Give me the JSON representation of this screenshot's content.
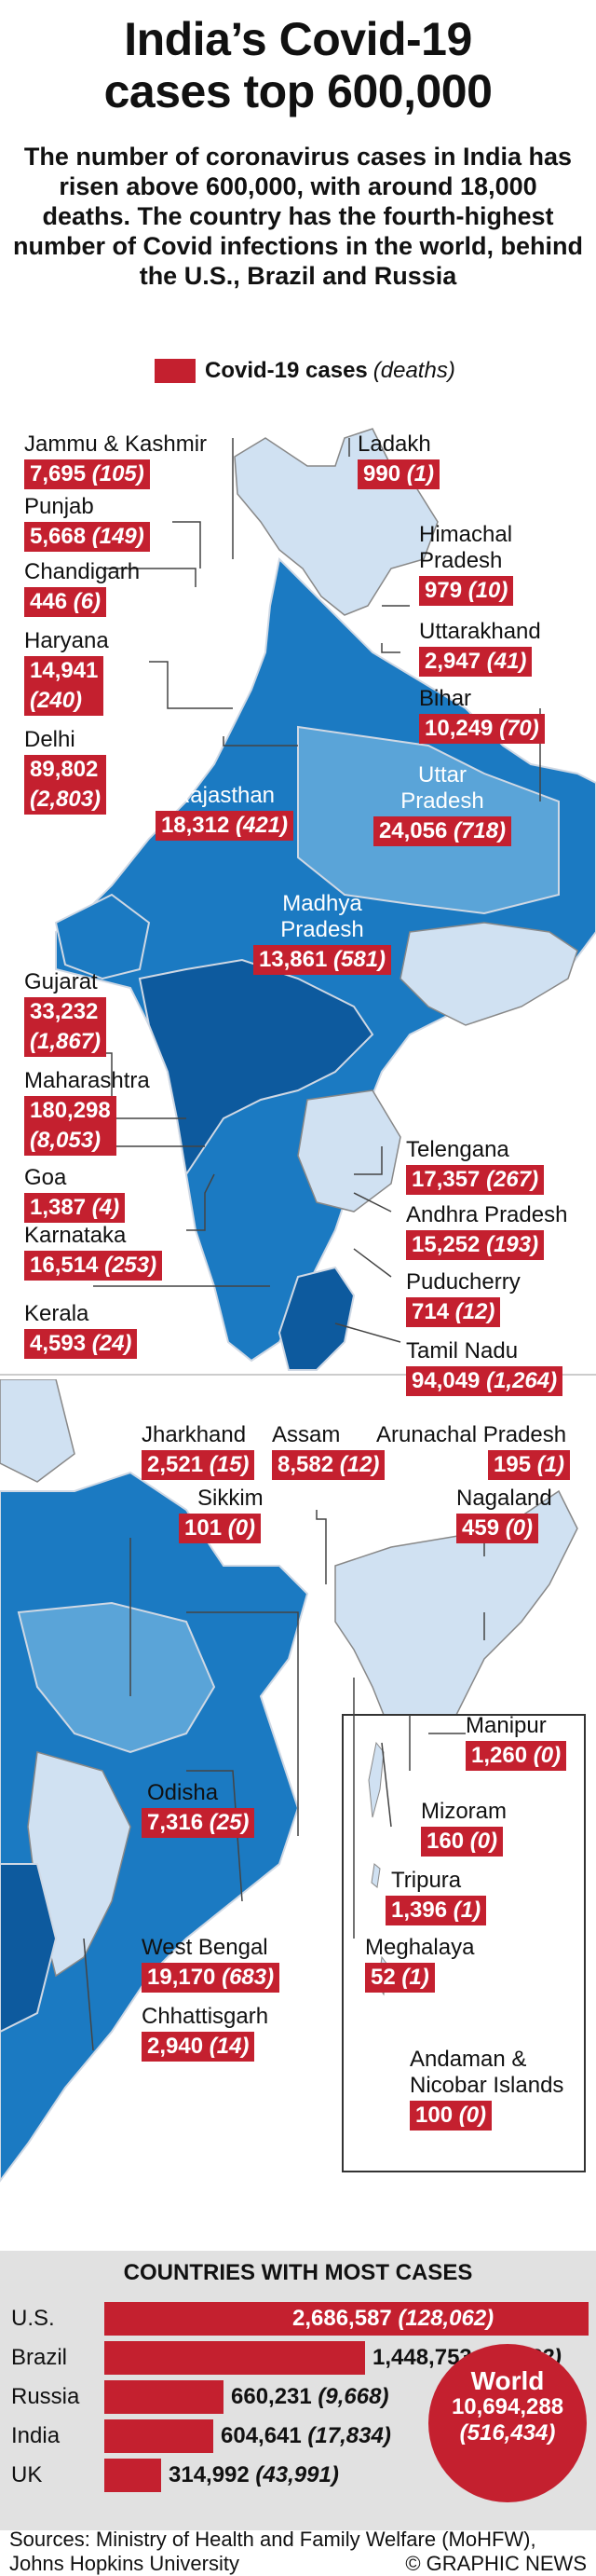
{
  "title_line1": "India’s Covid-19",
  "title_line2": "cases top 600,000",
  "subtitle": "The number of coronavirus cases in India has risen above 600,000, with around 18,000 deaths. The country has the fourth-highest number of Covid infections in the world, behind the U.S., Brazil and Russia",
  "legend": {
    "label": "Covid-19 cases",
    "sub": "(deaths)"
  },
  "colors": {
    "accent": "#c4202f",
    "dark": "#0d5a9e",
    "mid": "#1b7ac2",
    "light": "#5aa4d8",
    "pale": "#d0e1f2"
  },
  "states": {
    "jk": {
      "name": "Jammu & Kashmir",
      "cases": "7,695",
      "deaths": "(105)"
    },
    "ladakh": {
      "name": "Ladakh",
      "cases": "990",
      "deaths": "(1)"
    },
    "punjab": {
      "name": "Punjab",
      "cases": "5,668",
      "deaths": "(149)"
    },
    "himachal": {
      "name": "Himachal Pradesh",
      "cases": "979",
      "deaths": "(10)"
    },
    "chandigarh": {
      "name": "Chandigarh",
      "cases": "446",
      "deaths": "(6)"
    },
    "uttarakhand": {
      "name": "Uttarakhand",
      "cases": "2,947",
      "deaths": "(41)"
    },
    "haryana": {
      "name": "Haryana",
      "cases": "14,941",
      "deaths": "(240)"
    },
    "bihar": {
      "name": "Bihar",
      "cases": "10,249",
      "deaths": "(70)"
    },
    "delhi": {
      "name": "Delhi",
      "cases": "89,802",
      "deaths": "(2,803)"
    },
    "rajasthan": {
      "name": "Rajasthan",
      "cases": "18,312",
      "deaths": "(421)"
    },
    "up": {
      "name": "Uttar Pradesh",
      "cases": "24,056",
      "deaths": "(718)"
    },
    "mp": {
      "name": "Madhya Pradesh",
      "cases": "13,861",
      "deaths": "(581)"
    },
    "gujarat": {
      "name": "Gujarat",
      "cases": "33,232",
      "deaths": "(1,867)"
    },
    "maharashtra": {
      "name": "Maharashtra",
      "cases": "180,298",
      "deaths": "(8,053)"
    },
    "telengana": {
      "name": "Telengana",
      "cases": "17,357",
      "deaths": "(267)"
    },
    "goa": {
      "name": "Goa",
      "cases": "1,387",
      "deaths": "(4)"
    },
    "andhra": {
      "name": "Andhra Pradesh",
      "cases": "15,252",
      "deaths": "(193)"
    },
    "karnataka": {
      "name": "Karnataka",
      "cases": "16,514",
      "deaths": "(253)"
    },
    "puducherry": {
      "name": "Puducherry",
      "cases": "714",
      "deaths": "(12)"
    },
    "kerala": {
      "name": "Kerala",
      "cases": "4,593",
      "deaths": "(24)"
    },
    "tamilnadu": {
      "name": "Tamil Nadu",
      "cases": "94,049",
      "deaths": "(1,264)"
    },
    "jharkhand": {
      "name": "Jharkhand",
      "cases": "2,521",
      "deaths": "(15)"
    },
    "assam": {
      "name": "Assam",
      "cases": "8,582",
      "deaths": "(12)"
    },
    "arunachal": {
      "name": "Arunachal Pradesh",
      "cases": "195",
      "deaths": "(1)"
    },
    "sikkim": {
      "name": "Sikkim",
      "cases": "101",
      "deaths": "(0)"
    },
    "nagaland": {
      "name": "Nagaland",
      "cases": "459",
      "deaths": "(0)"
    },
    "manipur": {
      "name": "Manipur",
      "cases": "1,260",
      "deaths": "(0)"
    },
    "odisha": {
      "name": "Odisha",
      "cases": "7,316",
      "deaths": "(25)"
    },
    "mizoram": {
      "name": "Mizoram",
      "cases": "160",
      "deaths": "(0)"
    },
    "tripura": {
      "name": "Tripura",
      "cases": "1,396",
      "deaths": "(1)"
    },
    "westbengal": {
      "name": "West Bengal",
      "cases": "19,170",
      "deaths": "(683)"
    },
    "meghalaya": {
      "name": "Meghalaya",
      "cases": "52",
      "deaths": "(1)"
    },
    "chhattisgarh": {
      "name": "Chhattisgarh",
      "cases": "2,940",
      "deaths": "(14)"
    },
    "andaman": {
      "name": "Andaman & Nicobar Islands",
      "cases": "100",
      "deaths": "(0)"
    }
  },
  "countries": {
    "title": "COUNTRIES WITH MOST CASES",
    "rows": [
      {
        "name": "U.S.",
        "cases": 2686587,
        "cases_text": "2,686,587",
        "deaths": "(128,062)"
      },
      {
        "name": "Brazil",
        "cases": 1448753,
        "cases_text": "1,448,753",
        "deaths": "(60,632)"
      },
      {
        "name": "Russia",
        "cases": 660231,
        "cases_text": "660,231",
        "deaths": "(9,668)"
      },
      {
        "name": "India",
        "cases": 604641,
        "cases_text": "604,641",
        "deaths": "(17,834)"
      },
      {
        "name": "UK",
        "cases": 314992,
        "cases_text": "314,992",
        "deaths": "(43,991)"
      }
    ],
    "world": {
      "label": "World",
      "cases": "10,694,288",
      "deaths": "(516,434)"
    }
  },
  "footer": {
    "sources": "Sources: Ministry of Health and Family Welfare (MoHFW), Johns Hopkins University",
    "credit": "© GRAPHIC NEWS"
  }
}
